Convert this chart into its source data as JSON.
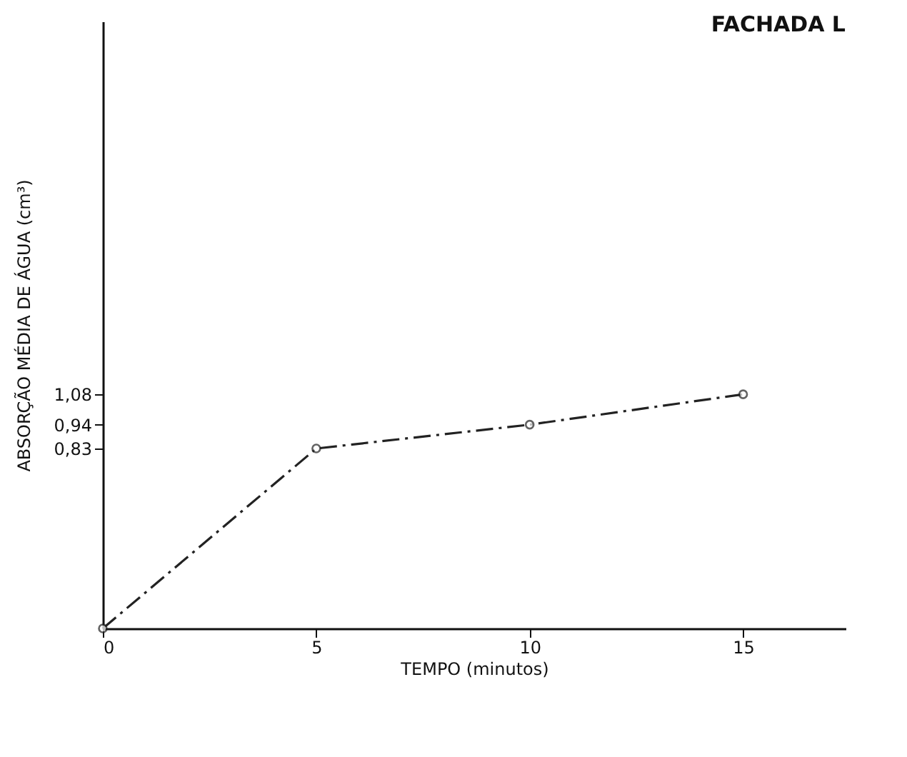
{
  "chart_data": {
    "type": "line",
    "title": "FACHADA L",
    "xlabel": "TEMPO (minutos)",
    "ylabel": "ABSORÇÃO MÉDIA DE ÁGUA (cm³)",
    "x": [
      0,
      5,
      10,
      15
    ],
    "series": [
      {
        "color": "#222222",
        "values": [
          0,
          0.83,
          0.94,
          1.08
        ]
      }
    ],
    "xlim": [
      0,
      17.4
    ],
    "ylim": [
      0,
      2.8
    ],
    "xticks": [
      0,
      5,
      10,
      15
    ],
    "yticks": [
      {
        "value": 0.83,
        "label": "0,83"
      },
      {
        "value": 0.94,
        "label": "0,94"
      },
      {
        "value": 1.08,
        "label": "1,08"
      }
    ],
    "grid": false,
    "legend": false,
    "marker": "circle",
    "line_style": "dashed"
  }
}
